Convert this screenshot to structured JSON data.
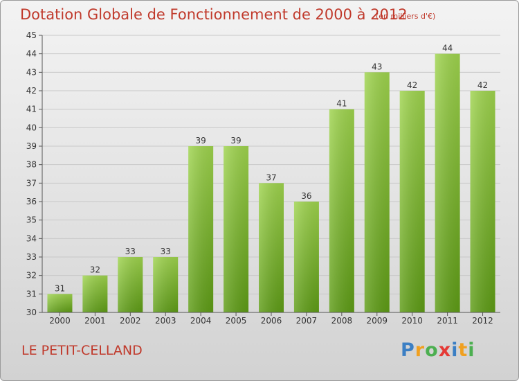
{
  "header": {
    "title": "Dotation Globale de Fonctionnement de 2000 à 2012",
    "subtitle": "(en milliers d'€)"
  },
  "footer": {
    "commune": "LE PETIT-CELLAND",
    "logo_text": "Proxiti"
  },
  "colors": {
    "title": "#c0392b",
    "bar_light": "#9fd44e",
    "bar_dark": "#5e9c16",
    "grid": "#c8c8c8"
  },
  "chart_data": {
    "type": "bar",
    "title": "Dotation Globale de Fonctionnement de 2000 à 2012",
    "subtitle": "(en milliers d'€)",
    "categories": [
      "2000",
      "2001",
      "2002",
      "2003",
      "2004",
      "2005",
      "2006",
      "2007",
      "2008",
      "2009",
      "2010",
      "2011",
      "2012"
    ],
    "values": [
      31,
      32,
      33,
      33,
      39,
      39,
      37,
      36,
      41,
      43,
      42,
      44,
      42
    ],
    "ylim": [
      30,
      45
    ],
    "yticks": [
      30,
      31,
      32,
      33,
      34,
      35,
      36,
      37,
      38,
      39,
      40,
      41,
      42,
      43,
      44,
      45
    ],
    "grid": true,
    "data_labels": true
  }
}
